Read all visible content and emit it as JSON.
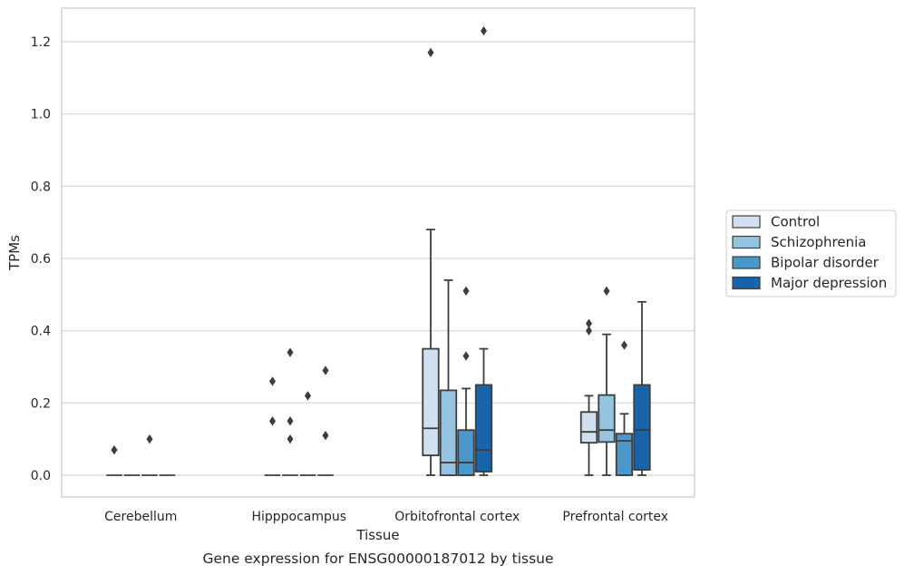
{
  "chart_data": {
    "type": "box",
    "xlabel": "Tissue",
    "ylabel": "TPMs",
    "caption": "Gene expression for ENSG00000187012 by tissue",
    "ylim": [
      -0.06,
      1.29
    ],
    "yticks": [
      "0.0",
      "0.2",
      "0.4",
      "0.6",
      "0.8",
      "1.0",
      "1.2"
    ],
    "grid": true,
    "legend_position": "right",
    "categories": [
      "Cerebellum",
      "Hipppocampus",
      "Orbitofrontal cortex",
      "Prefrontal cortex"
    ],
    "series": [
      {
        "name": "Control",
        "color": "#d0e0f1"
      },
      {
        "name": "Schizophrenia",
        "color": "#94c4df"
      },
      {
        "name": "Bipolar disorder",
        "color": "#4a97c9"
      },
      {
        "name": "Major depression",
        "color": "#1764ab"
      }
    ],
    "boxes": [
      [
        {
          "whislo": 0,
          "q1": 0,
          "med": 0,
          "q3": 0,
          "whishi": 0,
          "fliers": [
            0.07
          ]
        },
        {
          "whislo": 0,
          "q1": 0,
          "med": 0,
          "q3": 0,
          "whishi": 0,
          "fliers": []
        },
        {
          "whislo": 0,
          "q1": 0,
          "med": 0,
          "q3": 0,
          "whishi": 0,
          "fliers": [
            0.1
          ]
        },
        {
          "whislo": 0,
          "q1": 0,
          "med": 0,
          "q3": 0,
          "whishi": 0,
          "fliers": []
        }
      ],
      [
        {
          "whislo": 0,
          "q1": 0,
          "med": 0,
          "q3": 0,
          "whishi": 0,
          "fliers": [
            0.26,
            0.15
          ]
        },
        {
          "whislo": 0,
          "q1": 0,
          "med": 0,
          "q3": 0,
          "whishi": 0,
          "fliers": [
            0.34,
            0.15,
            0.1
          ]
        },
        {
          "whislo": 0,
          "q1": 0,
          "med": 0,
          "q3": 0,
          "whishi": 0,
          "fliers": [
            0.22
          ]
        },
        {
          "whislo": 0,
          "q1": 0,
          "med": 0,
          "q3": 0,
          "whishi": 0,
          "fliers": [
            0.29,
            0.11
          ]
        }
      ],
      [
        {
          "whislo": 0,
          "q1": 0.055,
          "med": 0.13,
          "q3": 0.35,
          "whishi": 0.68,
          "fliers": [
            1.17
          ]
        },
        {
          "whislo": 0,
          "q1": 0,
          "med": 0.035,
          "q3": 0.235,
          "whishi": 0.54,
          "fliers": []
        },
        {
          "whislo": 0,
          "q1": 0,
          "med": 0.035,
          "q3": 0.125,
          "whishi": 0.24,
          "fliers": [
            0.51,
            0.33
          ]
        },
        {
          "whislo": 0,
          "q1": 0.01,
          "med": 0.07,
          "q3": 0.25,
          "whishi": 0.35,
          "fliers": [
            1.23
          ]
        }
      ],
      [
        {
          "whislo": 0,
          "q1": 0.09,
          "med": 0.12,
          "q3": 0.175,
          "whishi": 0.22,
          "fliers": [
            0.42,
            0.4
          ]
        },
        {
          "whislo": 0,
          "q1": 0.092,
          "med": 0.125,
          "q3": 0.222,
          "whishi": 0.39,
          "fliers": [
            0.51
          ]
        },
        {
          "whislo": 0,
          "q1": 0,
          "med": 0.095,
          "q3": 0.115,
          "whishi": 0.17,
          "fliers": [
            0.36
          ]
        },
        {
          "whislo": 0,
          "q1": 0.015,
          "med": 0.125,
          "q3": 0.25,
          "whishi": 0.48,
          "fliers": []
        }
      ]
    ]
  }
}
